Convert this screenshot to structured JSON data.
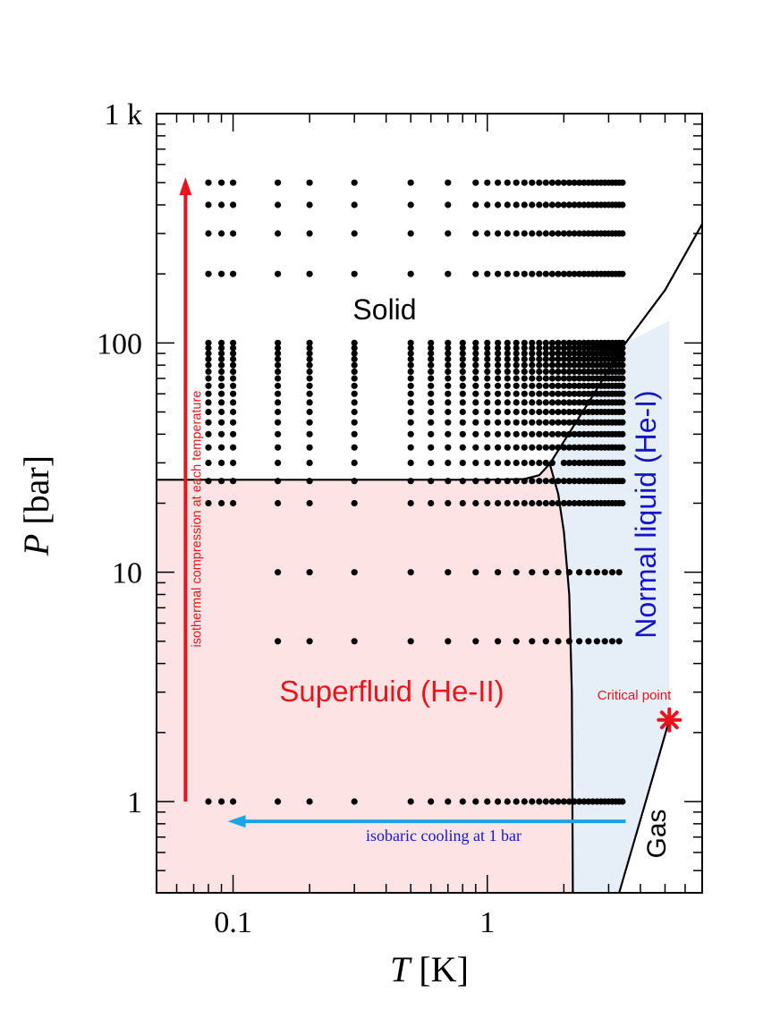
{
  "chart_data": {
    "type": "scatter",
    "title": "",
    "xlabel": {
      "var": "T",
      "unit": "[K]"
    },
    "ylabel": {
      "var": "P",
      "unit": "[bar]"
    },
    "xscale": "log",
    "yscale": "log",
    "xlim": [
      0.05,
      7
    ],
    "ylim": [
      0.4,
      1000
    ],
    "xticklabels": [
      {
        "value": 0.1,
        "label": "0.1"
      },
      {
        "value": 1,
        "label": "1"
      }
    ],
    "yticklabels": [
      {
        "value": 1,
        "label": "1"
      },
      {
        "value": 10,
        "label": "10"
      },
      {
        "value": 100,
        "label": "100"
      },
      {
        "value": 1000,
        "label": "1 k"
      }
    ],
    "regions": [
      {
        "name": "Solid",
        "label": "Solid",
        "color": "#000000"
      },
      {
        "name": "Superfluid",
        "label": "Superfluid (He-II)",
        "color": "#e8141c",
        "fill": "#fde3e3"
      },
      {
        "name": "Normal liquid",
        "label": "Normal liquid (He-I)",
        "color": "#1515c8",
        "fill": "#e6eef8"
      },
      {
        "name": "Gas",
        "label": "Gas",
        "color": "#000000"
      }
    ],
    "boundaries": {
      "melting_curve": [
        [
          0.05,
          25.3
        ],
        [
          1.0,
          25.3
        ],
        [
          1.4,
          25.5
        ],
        [
          1.6,
          26.5
        ],
        [
          1.76,
          29.7
        ],
        [
          2.5,
          55
        ],
        [
          3.5,
          100
        ],
        [
          5,
          170
        ],
        [
          7,
          330
        ]
      ],
      "lambda_line": [
        [
          1.76,
          29.7
        ],
        [
          1.9,
          22
        ],
        [
          2.0,
          15
        ],
        [
          2.1,
          8
        ],
        [
          2.15,
          3
        ],
        [
          2.17,
          0.4
        ]
      ],
      "vaporization_curve": [
        [
          3.3,
          0.4
        ],
        [
          4.2,
          1.0
        ],
        [
          5.2,
          2.27
        ]
      ]
    },
    "critical_point": {
      "T": 5.2,
      "P": 2.27,
      "label": "Critical point",
      "color": "#e8141c"
    },
    "arrows": [
      {
        "name": "isothermal",
        "label": "isothermal compression at each temperature",
        "T": 0.065,
        "P_from": 1,
        "P_to": 500,
        "color": "#e8141c",
        "label_color": "#e8141c"
      },
      {
        "name": "isobaric",
        "label": "isobaric cooling at 1 bar",
        "P": 0.82,
        "T_from": 3.5,
        "T_to": 0.1,
        "color": "#1aa3e6",
        "label_color": "#1515c8"
      }
    ],
    "dot_grid": {
      "temperatures": [
        0.08,
        0.09,
        0.1,
        0.15,
        0.2,
        0.3,
        0.5,
        0.6,
        0.7,
        0.8,
        0.9,
        1.0,
        1.1,
        1.2,
        1.3,
        1.4,
        1.5,
        1.6,
        1.7,
        1.8,
        1.9,
        2.0,
        2.1,
        2.2,
        2.3,
        2.4,
        2.5,
        2.6,
        2.7,
        2.8,
        2.9,
        3.0,
        3.1,
        3.2,
        3.3,
        3.4
      ],
      "pressures": [
        1,
        5,
        10,
        20,
        25,
        30,
        35,
        40,
        45,
        50,
        55,
        60,
        65,
        70,
        75,
        80,
        85,
        90,
        95,
        100,
        200,
        300,
        400,
        500
      ],
      "low_pressure_temperatures": [
        0.08,
        0.09,
        0.1,
        0.15,
        0.2,
        0.3,
        0.5,
        0.6,
        0.7,
        0.8,
        0.9,
        1.0,
        1.1,
        1.2,
        1.3,
        1.4,
        1.5,
        1.6,
        1.7,
        1.8,
        1.9,
        2.0,
        2.1,
        2.2,
        2.3,
        2.4,
        2.5,
        2.6,
        2.7,
        2.8,
        2.9,
        3.0,
        3.1,
        3.2,
        3.3,
        3.4
      ],
      "mid_pressure_temperatures": [
        0.15,
        0.2,
        0.3,
        0.5,
        0.7,
        0.9,
        1.1,
        1.3,
        1.5,
        1.7,
        1.9,
        2.1,
        2.3,
        2.5,
        2.7,
        2.9,
        3.1,
        3.3
      ],
      "mid_pressures": [
        5,
        10
      ],
      "high_pressure_temperatures": [
        0.08,
        0.09,
        0.1,
        0.15,
        0.2,
        0.3,
        0.5,
        0.7,
        0.9,
        1.0,
        1.1,
        1.2,
        1.3,
        1.4,
        1.5,
        1.6,
        1.7,
        1.8,
        1.9,
        2.0,
        2.1,
        2.2,
        2.3,
        2.4,
        2.5,
        2.6,
        2.7,
        2.8,
        2.9,
        3.0,
        3.1,
        3.2,
        3.3,
        3.4
      ],
      "high_pressures": [
        200,
        300,
        400,
        500
      ]
    }
  }
}
